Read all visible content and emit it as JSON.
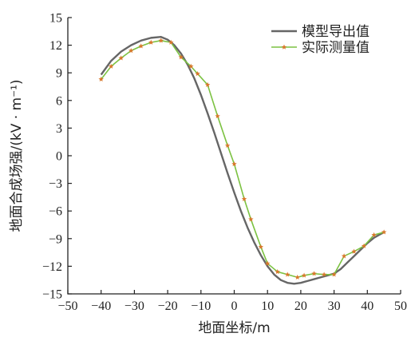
{
  "chart_data": {
    "type": "line",
    "xlabel": "地面坐标/m",
    "ylabel": "地面合成场强/(kV · m⁻¹)",
    "xlim": [
      -50,
      50
    ],
    "ylim": [
      -15,
      15
    ],
    "xticks": [
      -50,
      -40,
      -30,
      -20,
      -10,
      0,
      10,
      20,
      30,
      40,
      50
    ],
    "yticks": [
      -15,
      -12,
      -9,
      -6,
      -3,
      0,
      3,
      6,
      9,
      12,
      15
    ],
    "xtick_labels": [
      "−50",
      "−40",
      "−30",
      "−20",
      "−10",
      "0",
      "10",
      "20",
      "30",
      "40",
      "50"
    ],
    "ytick_labels": [
      "−15",
      "−12",
      "−9",
      "−6",
      "−3",
      "0",
      "3",
      "6",
      "9",
      "12",
      "15"
    ],
    "grid": false,
    "legend_position": "top-right",
    "series": [
      {
        "name": "模型导出值",
        "color": "#666666",
        "marker": "none",
        "x": [
          -40,
          -37,
          -34,
          -31,
          -28,
          -25,
          -22,
          -20,
          -18,
          -16,
          -14,
          -12,
          -10,
          -8,
          -6,
          -4,
          -2,
          0,
          2,
          4,
          6,
          8,
          10,
          12,
          14,
          16,
          18,
          20,
          22,
          24,
          26,
          28,
          30,
          32,
          34,
          36,
          38,
          40,
          42,
          45
        ],
        "y": [
          8.8,
          10.3,
          11.3,
          12.0,
          12.5,
          12.8,
          12.9,
          12.6,
          12.0,
          11.1,
          9.9,
          8.4,
          6.6,
          4.6,
          2.5,
          0.3,
          -1.9,
          -4.0,
          -6.0,
          -7.8,
          -9.4,
          -10.8,
          -12.0,
          -12.9,
          -13.5,
          -13.8,
          -13.9,
          -13.8,
          -13.6,
          -13.4,
          -13.2,
          -13.0,
          -12.8,
          -12.3,
          -11.6,
          -10.9,
          -10.2,
          -9.5,
          -8.9,
          -8.3
        ]
      },
      {
        "name": "实际测量值",
        "color": "#7cc242",
        "marker": "star",
        "marker_color": "#d8782c",
        "x": [
          -40,
          -37,
          -34,
          -31,
          -28,
          -25,
          -22,
          -19,
          -16,
          -13,
          -11,
          -8,
          -5,
          -2,
          0,
          3,
          5,
          8,
          10,
          13,
          16,
          19,
          21,
          24,
          27,
          30,
          33,
          36,
          39,
          42,
          45
        ],
        "y": [
          8.3,
          9.7,
          10.6,
          11.4,
          11.9,
          12.3,
          12.5,
          12.3,
          10.7,
          9.7,
          8.9,
          7.7,
          4.3,
          1.1,
          -0.9,
          -4.7,
          -6.9,
          -9.9,
          -11.7,
          -12.6,
          -12.9,
          -13.2,
          -13.0,
          -12.8,
          -12.9,
          -12.9,
          -10.9,
          -10.4,
          -9.8,
          -8.6,
          -8.3
        ]
      }
    ]
  }
}
